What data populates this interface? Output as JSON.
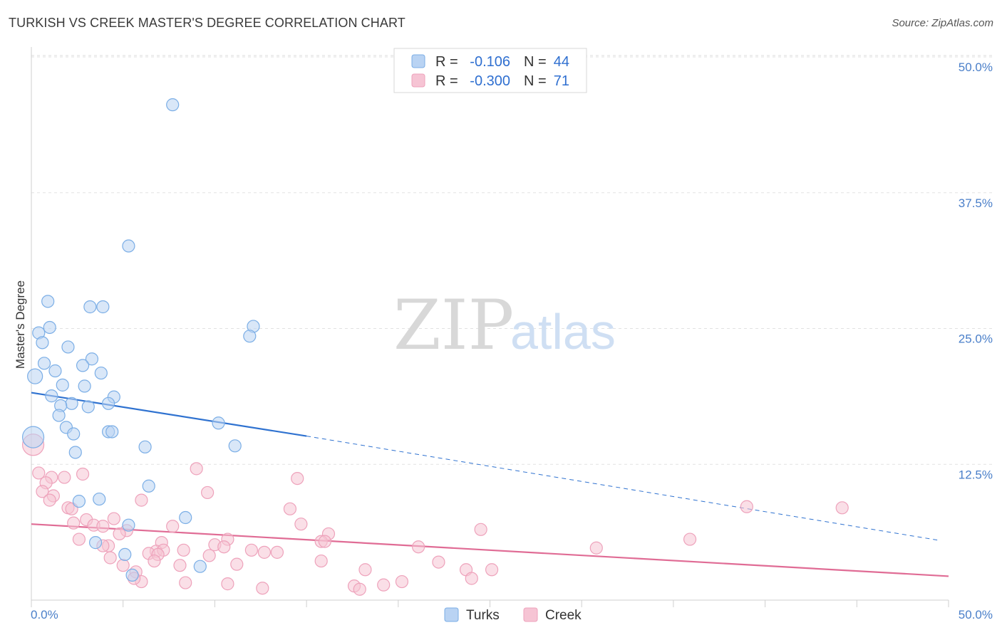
{
  "title": "TURKISH VS CREEK MASTER'S DEGREE CORRELATION CHART",
  "source": "Source: ZipAtlas.com",
  "chart_data": {
    "type": "scatter",
    "ylabel": "Master's Degree",
    "xlim": [
      0,
      50
    ],
    "ylim": [
      0,
      50
    ],
    "x_tick_labels": [
      "0.0%",
      "50.0%"
    ],
    "y_ticks": [
      {
        "value": 12.5,
        "label": "12.5%"
      },
      {
        "value": 25,
        "label": "25.0%"
      },
      {
        "value": 37.5,
        "label": "37.5%"
      },
      {
        "value": 50,
        "label": "50.0%"
      }
    ],
    "grid": true,
    "legend": {
      "placement": "top-center",
      "entries": [
        {
          "r_label": "R =",
          "r_value": "-0.106",
          "n_label": "N =",
          "n_value": "44"
        },
        {
          "r_label": "R =",
          "r_value": "-0.300",
          "n_label": "N =",
          "n_value": "71"
        }
      ]
    },
    "watermark": {
      "zip": "ZIP",
      "atlas": "atlas"
    },
    "series": [
      {
        "name": "Turks",
        "color": "#7baee6",
        "fill": "#b9d3f3",
        "line_color": "#2f72d0",
        "trend": {
          "x0": 0,
          "y0": 19.1,
          "x1": 15,
          "y1": 15.1,
          "x_dash_end": 49.5,
          "y_dash_end": 5.5
        },
        "points": [
          [
            7.7,
            45.6
          ],
          [
            5.3,
            32.6
          ],
          [
            0.9,
            27.5
          ],
          [
            3.2,
            27.0
          ],
          [
            3.9,
            27.0
          ],
          [
            0.4,
            24.6
          ],
          [
            1.0,
            25.1
          ],
          [
            12.1,
            25.2
          ],
          [
            11.9,
            24.3
          ],
          [
            0.6,
            23.7
          ],
          [
            2.0,
            23.3
          ],
          [
            3.3,
            22.2
          ],
          [
            0.7,
            21.8
          ],
          [
            2.8,
            21.6
          ],
          [
            1.3,
            21.1
          ],
          [
            3.8,
            20.9
          ],
          [
            0.2,
            20.6
          ],
          [
            1.7,
            19.8
          ],
          [
            2.9,
            19.7
          ],
          [
            4.5,
            18.7
          ],
          [
            1.1,
            18.8
          ],
          [
            2.2,
            18.1
          ],
          [
            1.6,
            17.9
          ],
          [
            3.1,
            17.8
          ],
          [
            4.2,
            18.1
          ],
          [
            1.5,
            17.0
          ],
          [
            10.2,
            16.3
          ],
          [
            1.9,
            15.9
          ],
          [
            4.2,
            15.5
          ],
          [
            4.4,
            15.5
          ],
          [
            2.3,
            15.3
          ],
          [
            0.1,
            15.0
          ],
          [
            6.2,
            14.1
          ],
          [
            11.1,
            14.2
          ],
          [
            2.4,
            13.6
          ],
          [
            6.4,
            10.5
          ],
          [
            3.7,
            9.3
          ],
          [
            2.6,
            9.1
          ],
          [
            8.4,
            7.6
          ],
          [
            5.3,
            6.9
          ],
          [
            3.5,
            5.3
          ],
          [
            5.1,
            4.2
          ],
          [
            5.5,
            2.3
          ],
          [
            9.2,
            3.1
          ]
        ]
      },
      {
        "name": "Creek",
        "color": "#eea2bb",
        "fill": "#f6c4d4",
        "line_color": "#e06c95",
        "trend": {
          "x0": 0,
          "y0": 7.0,
          "x1": 50,
          "y1": 2.2
        },
        "points": [
          [
            0.1,
            14.3
          ],
          [
            0.4,
            11.7
          ],
          [
            9.0,
            12.1
          ],
          [
            1.1,
            11.3
          ],
          [
            1.8,
            11.3
          ],
          [
            2.8,
            11.6
          ],
          [
            14.5,
            11.2
          ],
          [
            0.8,
            10.8
          ],
          [
            0.6,
            10.0
          ],
          [
            9.6,
            9.9
          ],
          [
            1.2,
            9.6
          ],
          [
            1.0,
            9.2
          ],
          [
            6.0,
            9.2
          ],
          [
            2.0,
            8.5
          ],
          [
            2.2,
            8.4
          ],
          [
            14.1,
            8.4
          ],
          [
            39.0,
            8.6
          ],
          [
            44.2,
            8.5
          ],
          [
            3.0,
            7.4
          ],
          [
            4.5,
            7.5
          ],
          [
            2.3,
            7.1
          ],
          [
            3.4,
            6.9
          ],
          [
            3.9,
            6.8
          ],
          [
            7.7,
            6.8
          ],
          [
            14.7,
            7.0
          ],
          [
            5.2,
            6.4
          ],
          [
            4.8,
            6.1
          ],
          [
            24.5,
            6.5
          ],
          [
            16.2,
            6.1
          ],
          [
            2.6,
            5.6
          ],
          [
            10.7,
            5.6
          ],
          [
            15.8,
            5.4
          ],
          [
            16.0,
            5.4
          ],
          [
            35.9,
            5.6
          ],
          [
            7.1,
            5.3
          ],
          [
            10.0,
            5.1
          ],
          [
            4.2,
            5.0
          ],
          [
            3.9,
            5.0
          ],
          [
            10.5,
            4.9
          ],
          [
            21.1,
            4.9
          ],
          [
            30.8,
            4.8
          ],
          [
            6.8,
            4.5
          ],
          [
            7.2,
            4.6
          ],
          [
            8.3,
            4.6
          ],
          [
            12.0,
            4.6
          ],
          [
            13.4,
            4.4
          ],
          [
            12.7,
            4.4
          ],
          [
            6.4,
            4.3
          ],
          [
            6.9,
            4.2
          ],
          [
            9.7,
            4.1
          ],
          [
            4.3,
            3.9
          ],
          [
            6.7,
            3.6
          ],
          [
            15.8,
            3.6
          ],
          [
            22.2,
            3.5
          ],
          [
            11.2,
            3.3
          ],
          [
            8.1,
            3.2
          ],
          [
            18.2,
            2.8
          ],
          [
            23.7,
            2.8
          ],
          [
            25.1,
            2.8
          ],
          [
            5.7,
            2.6
          ],
          [
            24.0,
            2.0
          ],
          [
            6.0,
            1.7
          ],
          [
            8.4,
            1.6
          ],
          [
            10.7,
            1.5
          ],
          [
            17.6,
            1.3
          ],
          [
            19.2,
            1.4
          ],
          [
            20.2,
            1.7
          ],
          [
            12.6,
            1.1
          ],
          [
            5.0,
            3.2
          ],
          [
            17.9,
            1.0
          ],
          [
            5.6,
            2.0
          ]
        ]
      }
    ]
  }
}
